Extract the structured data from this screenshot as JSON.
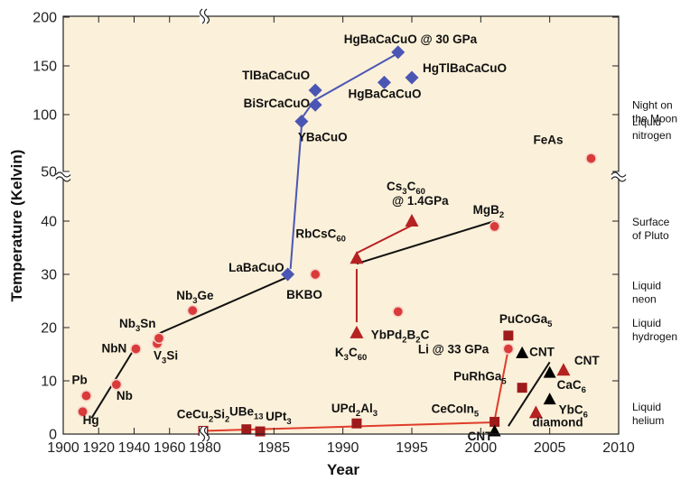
{
  "chart_data": {
    "type": "scatter",
    "title": "",
    "xlabel": "Year",
    "ylabel": "Temperature (Kelvin)",
    "xlim": [
      1900,
      2010
    ],
    "x_ticks": [
      "1900",
      "1920",
      "1940",
      "1960",
      "1980",
      "1985",
      "1990",
      "1995",
      "2000",
      "2005",
      "2010"
    ],
    "y_ticks": [
      "0",
      "10",
      "20",
      "30",
      "40",
      "50",
      "100",
      "150",
      "200"
    ],
    "y_scale": "broken: linear 0-45 K below the break, compressed 50-200 K above",
    "x_scale": "broken: 1900-1980 compressed, 1980-2010 expanded",
    "background": "#fbf0d9",
    "marker_colors": {
      "circle": "#d93a3a",
      "diamond": "#4b56b4",
      "triangle": "#b52222",
      "square": "#9e1b1b",
      "black_triangle": "#000000"
    },
    "points": [
      {
        "name": "Hg",
        "label_main": "Hg",
        "label_sub": "",
        "label_tail": "",
        "x": 1911,
        "y": 4.2,
        "marker": "circle"
      },
      {
        "name": "Pb",
        "label_main": "Pb",
        "label_sub": "",
        "label_tail": "",
        "x": 1913,
        "y": 7.2,
        "marker": "circle"
      },
      {
        "name": "Nb",
        "label_main": "Nb",
        "label_sub": "",
        "label_tail": "",
        "x": 1930,
        "y": 9.3,
        "marker": "circle"
      },
      {
        "name": "NbN",
        "label_main": "NbN",
        "label_sub": "",
        "label_tail": "",
        "x": 1941,
        "y": 16,
        "marker": "circle"
      },
      {
        "name": "V3Si",
        "label_main": "V",
        "label_sub": "3",
        "label_tail": "Si",
        "x": 1953,
        "y": 17,
        "marker": "circle"
      },
      {
        "name": "Nb3Sn",
        "label_main": "Nb",
        "label_sub": "3",
        "label_tail": "Sn",
        "x": 1954,
        "y": 18,
        "marker": "circle"
      },
      {
        "name": "Nb3Ge",
        "label_main": "Nb",
        "label_sub": "3",
        "label_tail": "Ge",
        "x": 1973,
        "y": 23.2,
        "marker": "circle"
      },
      {
        "name": "CeCu2Si2",
        "label_main": "CeCu",
        "label_sub": "2",
        "label_tail": "Si",
        "label_sub2": "2",
        "x": 1979,
        "y": 0.6,
        "marker": "square"
      },
      {
        "name": "UBe13",
        "label_main": "UBe",
        "label_sub": "13",
        "label_tail": "",
        "x": 1983,
        "y": 0.9,
        "marker": "square"
      },
      {
        "name": "UPt3",
        "label_main": "UPt",
        "label_sub": "3",
        "label_tail": "",
        "x": 1984,
        "y": 0.5,
        "marker": "square"
      },
      {
        "name": "LaBaCuO",
        "label_main": "LaBaCuO",
        "label_sub": "",
        "label_tail": "",
        "x": 1986,
        "y": 30,
        "marker": "diamond"
      },
      {
        "name": "YBaCuO",
        "label_main": "YBaCuO",
        "label_sub": "",
        "label_tail": "",
        "x": 1987,
        "y": 93,
        "marker": "diamond"
      },
      {
        "name": "BiSrCaCuO",
        "label_main": "BiSrCaCuO",
        "label_sub": "",
        "label_tail": "",
        "x": 1988,
        "y": 110,
        "marker": "diamond"
      },
      {
        "name": "TlBaCaCuO",
        "label_main": "TlBaCaCuO",
        "label_sub": "",
        "label_tail": "",
        "x": 1988,
        "y": 125,
        "marker": "diamond"
      },
      {
        "name": "BKBO",
        "label_main": "BKBO",
        "label_sub": "",
        "label_tail": "",
        "x": 1988,
        "y": 30,
        "marker": "circle"
      },
      {
        "name": "RbCsC60",
        "label_main": "RbCsC",
        "label_sub": "60",
        "label_tail": "",
        "x": 1991,
        "y": 33,
        "marker": "triangle"
      },
      {
        "name": "K3C60",
        "label_main": "K",
        "label_sub": "3",
        "label_tail": "C",
        "label_sub2": "60",
        "x": 1991,
        "y": 19,
        "marker": "triangle"
      },
      {
        "name": "UPd2Al3",
        "label_main": "UPd",
        "label_sub": "2",
        "label_tail": "Al",
        "label_sub2": "3",
        "x": 1991,
        "y": 2,
        "marker": "square"
      },
      {
        "name": "HgBaCaCuO",
        "label_main": "HgBaCaCuO",
        "label_sub": "",
        "label_tail": "",
        "x": 1993,
        "y": 133,
        "marker": "diamond"
      },
      {
        "name": "YbPd2B2C",
        "label_main": "YbPd",
        "label_sub": "2",
        "label_tail": "B",
        "label_sub2": "2",
        "label_tail2": "C",
        "x": 1994,
        "y": 23,
        "marker": "circle"
      },
      {
        "name": "HgBaCaCuO @ 30 GPa",
        "label_main": "HgBaCaCuO @ 30 GPa",
        "label_sub": "",
        "label_tail": "",
        "x": 1994,
        "y": 164,
        "marker": "diamond"
      },
      {
        "name": "HgTlBaCaCuO",
        "label_main": "HgTlBaCaCuO",
        "label_sub": "",
        "label_tail": "",
        "x": 1995,
        "y": 138,
        "marker": "diamond"
      },
      {
        "name": "Cs3C60 @ 1.4GPa",
        "label_main": "Cs",
        "label_sub": "3",
        "label_tail": "C",
        "label_sub2": "60",
        "label_line2": "@ 1.4GPa",
        "x": 1995,
        "y": 40,
        "marker": "triangle"
      },
      {
        "name": "MgB2",
        "label_main": "MgB",
        "label_sub": "2",
        "label_tail": "",
        "x": 2001,
        "y": 39,
        "marker": "circle"
      },
      {
        "name": "CeCoIn5",
        "label_main": "CeCoIn",
        "label_sub": "5",
        "label_tail": "",
        "x": 2001,
        "y": 2.3,
        "marker": "square"
      },
      {
        "name": "CNT",
        "label_main": "CNT",
        "label_sub": "",
        "label_tail": "",
        "x": 2001,
        "y": 0.5,
        "marker": "black_triangle"
      },
      {
        "name": "PuCoGa5",
        "label_main": "PuCoGa",
        "label_sub": "5",
        "label_tail": "",
        "x": 2002,
        "y": 18.5,
        "marker": "square"
      },
      {
        "name": "Li @ 33 GPa",
        "label_main": "Li @ 33 GPa",
        "label_sub": "",
        "label_tail": "",
        "x": 2002,
        "y": 16,
        "marker": "circle"
      },
      {
        "name": "PuRhGa5",
        "label_main": "PuRhGa",
        "label_sub": "5",
        "label_tail": "",
        "x": 2003,
        "y": 8.7,
        "marker": "square"
      },
      {
        "name": "CNT",
        "label_main": "CNT",
        "label_sub": "",
        "label_tail": "",
        "x": 2003,
        "y": 15.2,
        "marker": "black_triangle"
      },
      {
        "name": "diamond",
        "label_main": "diamond",
        "label_sub": "",
        "label_tail": "",
        "x": 2004,
        "y": 4,
        "marker": "triangle"
      },
      {
        "name": "CaC6",
        "label_main": "CaC",
        "label_sub": "6",
        "label_tail": "",
        "x": 2005,
        "y": 11.5,
        "marker": "black_triangle"
      },
      {
        "name": "YbC6",
        "label_main": "YbC",
        "label_sub": "6",
        "label_tail": "",
        "x": 2005,
        "y": 6.5,
        "marker": "black_triangle"
      },
      {
        "name": "CNT",
        "label_main": "CNT",
        "label_sub": "",
        "label_tail": "",
        "x": 2006,
        "y": 12,
        "marker": "triangle"
      },
      {
        "name": "FeAs",
        "label_main": "FeAs",
        "label_sub": "",
        "label_tail": "",
        "x": 2008,
        "y": 55,
        "marker": "circle"
      }
    ],
    "reference_levels": [
      {
        "line1": "Night on",
        "line2": "the Moon"
      },
      {
        "line1": "Liquid",
        "line2": "nitrogen"
      },
      {
        "line1": "Surface",
        "line2": "of Pluto"
      },
      {
        "line1": "Liquid",
        "line2": "neon"
      },
      {
        "line1": "Liquid",
        "line2": "hydrogen"
      },
      {
        "line1": "Liquid",
        "line2": "helium"
      }
    ]
  }
}
